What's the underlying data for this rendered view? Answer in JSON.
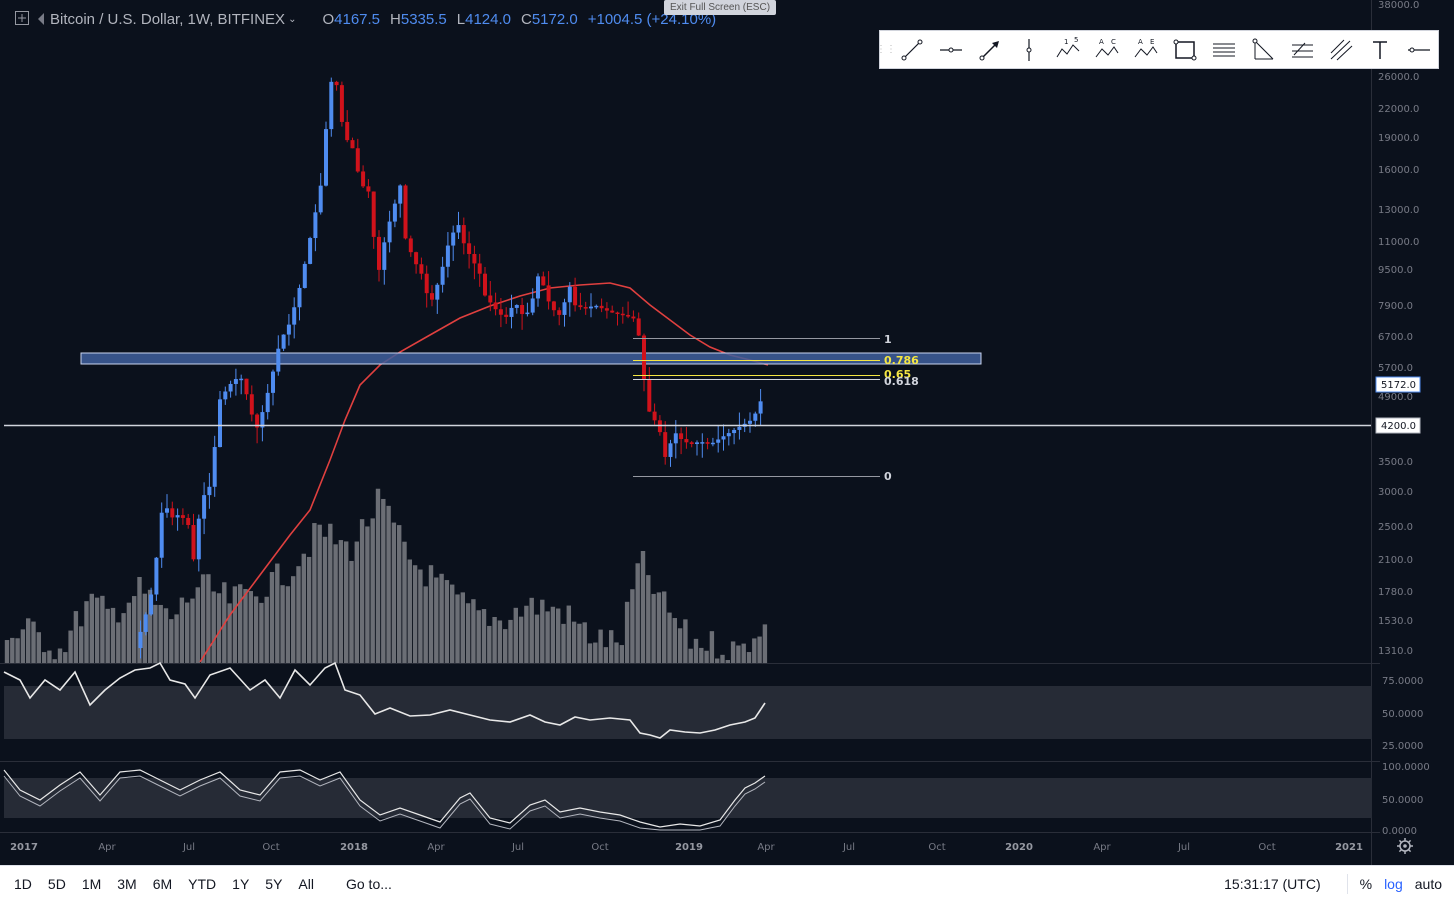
{
  "legend": {
    "symbol": "Bitcoin / U.S. Dollar, 1W, BITFINEX",
    "open_k": "O",
    "open": "4167.5",
    "high_k": "H",
    "high": "5335.5",
    "low_k": "L",
    "low": "4124.0",
    "close_k": "C",
    "close": "5172.0",
    "change": "+1004.5 (+24.10%)"
  },
  "exit_fullscreen": "Exit Full Screen (ESC)",
  "price_axis": {
    "labels": [
      "38000.0",
      "26000.0",
      "22000.0",
      "19000.0",
      "16000.0",
      "13000.0",
      "11000.0",
      "9500.0",
      "7900.0",
      "6700.0",
      "5700.0",
      "4900.0",
      "3500.0",
      "3000.0",
      "2500.0",
      "2100.0",
      "1780.0",
      "1530.0",
      "1310.0"
    ],
    "current_price_tag": "5172.0",
    "horizontal_line_tag": "4200.0",
    "scale": "log"
  },
  "rsi_axis": {
    "labels": [
      "75.0000",
      "50.0000",
      "25.0000"
    ]
  },
  "stoch_axis": {
    "labels": [
      "100.0000",
      "50.0000",
      "0.0000"
    ]
  },
  "time_axis": {
    "labels": [
      "2017",
      "Apr",
      "Jul",
      "Oct",
      "2018",
      "Apr",
      "Jul",
      "Oct",
      "2019",
      "Apr",
      "Jul",
      "Oct",
      "2020",
      "Apr",
      "Jul",
      "Oct",
      "2021"
    ]
  },
  "fib_levels": [
    {
      "label": "1",
      "value": 6800
    },
    {
      "label": "0.786",
      "value": 5900
    },
    {
      "label": "0.65",
      "value": 5400
    },
    {
      "label": "0.618",
      "value": 5300
    },
    {
      "label": "0",
      "value": 3220
    }
  ],
  "drawing_tools": [
    "trend-line-icon",
    "horizontal-ray-icon",
    "arrow-icon",
    "vertical-line-icon",
    "elliott-wave-icon",
    "abcd-pattern-icon",
    "xabcd-pattern-icon",
    "rectangle-icon",
    "parallel-channel-icon",
    "fib-fan-icon",
    "fib-retracement-icon",
    "pitchfork-icon",
    "text-icon",
    "horizontal-line-icon"
  ],
  "elliott_labels": {
    "a": "1",
    "b": "5",
    "c": "A",
    "d": "C",
    "e": "A",
    "f": "E"
  },
  "bottom_bar": {
    "ranges": [
      "1D",
      "5D",
      "1M",
      "3M",
      "6M",
      "YTD",
      "1Y",
      "5Y",
      "All"
    ],
    "goto": "Go to...",
    "clock": "15:31:17 (UTC)",
    "percent": "%",
    "log": "log",
    "auto": "auto"
  },
  "colors": {
    "background": "#0b111c",
    "up": "#4f8cf0",
    "down": "#d0121b",
    "ma": "#e0403f",
    "volume": "#6b6e75",
    "fib_yellow": "#f5e642",
    "zone": "#3f5f9c"
  }
}
